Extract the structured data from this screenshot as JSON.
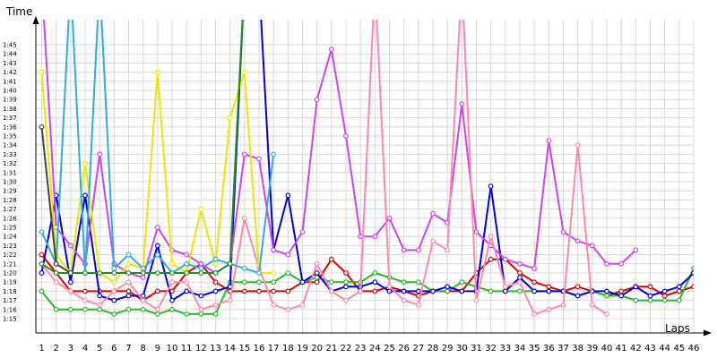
{
  "chart_data": {
    "type": "line",
    "ylabel": "Time",
    "xlabel": "Laps",
    "x_ticks": [
      "1",
      "2",
      "3",
      "4",
      "5",
      "6",
      "7",
      "8",
      "9",
      "10",
      "11",
      "12",
      "13",
      "14",
      "15",
      "16",
      "17",
      "18",
      "19",
      "20",
      "21",
      "22",
      "23",
      "24",
      "25",
      "26",
      "27",
      "28",
      "29",
      "30",
      "31",
      "32",
      "33",
      "34",
      "35",
      "36",
      "37",
      "38",
      "39",
      "40",
      "41",
      "42",
      "43",
      "44",
      "45",
      "46"
    ],
    "y_ticks": [
      "1:15",
      "1:16",
      "1:17",
      "1:18",
      "1:19",
      "1:20",
      "1:21",
      "1:22",
      "1:23",
      "1:24",
      "1:25",
      "1:26",
      "1:27",
      "1:28",
      "1:29",
      "1:30",
      "1:31",
      "1:32",
      "1:33",
      "1:34",
      "1:35",
      "1:36",
      "1:37",
      "1:38",
      "1:39",
      "1:40",
      "1:41",
      "1:42",
      "1:43",
      "1:44",
      "1:45"
    ],
    "y_unit": "seconds",
    "ylim": [
      74,
      107
    ],
    "xlim": [
      1,
      46
    ],
    "grid": true,
    "legend": "none",
    "series": [
      {
        "color": "#dd0000",
        "values": [
          82,
          80,
          78,
          78,
          78,
          78,
          78,
          77,
          78,
          78,
          80,
          81,
          79,
          78,
          78,
          78,
          78,
          78,
          79,
          79,
          81.5,
          80,
          78,
          78,
          78.5,
          78,
          77.5,
          78,
          78,
          78,
          80,
          81.5,
          81.5,
          80,
          79,
          78.5,
          78,
          78.5,
          78,
          77.5,
          78,
          78.5,
          78.5,
          77.5,
          78,
          78.5
        ]
      },
      {
        "color": "#22bb22",
        "values": [
          78,
          76,
          76,
          76,
          76,
          75.5,
          76,
          76,
          75.5,
          76,
          75.5,
          75.5,
          75.5,
          79,
          79,
          79,
          79,
          80,
          79,
          79.5,
          79,
          79,
          79,
          80,
          79.5,
          79,
          79,
          78,
          78,
          79,
          78.5,
          78,
          78,
          78,
          78,
          78,
          78,
          77.5,
          78,
          77.5,
          77.5,
          77,
          77,
          77,
          77,
          80.5
        ]
      },
      {
        "color": "#0000dd",
        "values": [
          80,
          88.5,
          79,
          88.5,
          77.5,
          77,
          77.5,
          77.5,
          83,
          77,
          78,
          77.5,
          78,
          78.5,
          112,
          112,
          82.5,
          88.5,
          79,
          80,
          78,
          78.5,
          78.5,
          79,
          78,
          78,
          78,
          78,
          78.5,
          78,
          78,
          89.5,
          78,
          79.5,
          78,
          78,
          78,
          77.5,
          78,
          78,
          77.5,
          78.5,
          77.5,
          78,
          78.5,
          80
        ]
      },
      {
        "color": "#cc44ee",
        "values": [
          112,
          85,
          83,
          81,
          93,
          81,
          80,
          79.5,
          85,
          82.5,
          82,
          81,
          80,
          81,
          93,
          92.5,
          82.5,
          82,
          84.5,
          99,
          104.5,
          95,
          84,
          84,
          86,
          82.5,
          82.5,
          86.5,
          85.5,
          98.5,
          84.5,
          83,
          81.5,
          81,
          80.5,
          94.5,
          84.5,
          83.5,
          83,
          81,
          81,
          82.5
        ]
      },
      {
        "color": "#ff88aa",
        "values": [
          81,
          79,
          78,
          77,
          76.5,
          78,
          79,
          77,
          76,
          79,
          79,
          76,
          76.5,
          77,
          86,
          80.5,
          76.5,
          76,
          76.5,
          81,
          78,
          77,
          78,
          112,
          78.5,
          77,
          76.5,
          83.5,
          82.5,
          112,
          77,
          84,
          78.5,
          79,
          75.5,
          76,
          76.5,
          94,
          76.5,
          75.5
        ]
      },
      {
        "color": "#e8e800",
        "values": [
          102,
          82,
          80,
          92,
          80,
          79,
          81,
          80.5,
          102,
          81,
          80,
          87,
          81,
          97,
          102,
          80,
          80
        ]
      },
      {
        "color": "#33aadd",
        "values": [
          84.5,
          81,
          112,
          80,
          112,
          80.5,
          82,
          80.5,
          82,
          80,
          81,
          80.5,
          81.5,
          81,
          80.5,
          80,
          93
        ]
      },
      {
        "color": "#228b22",
        "values": [
          81,
          80,
          80,
          80,
          80,
          80,
          80,
          80,
          80,
          80,
          80,
          80,
          80,
          81,
          112
        ]
      },
      {
        "color": "#444444",
        "values": [
          96,
          81,
          80
        ]
      }
    ]
  }
}
